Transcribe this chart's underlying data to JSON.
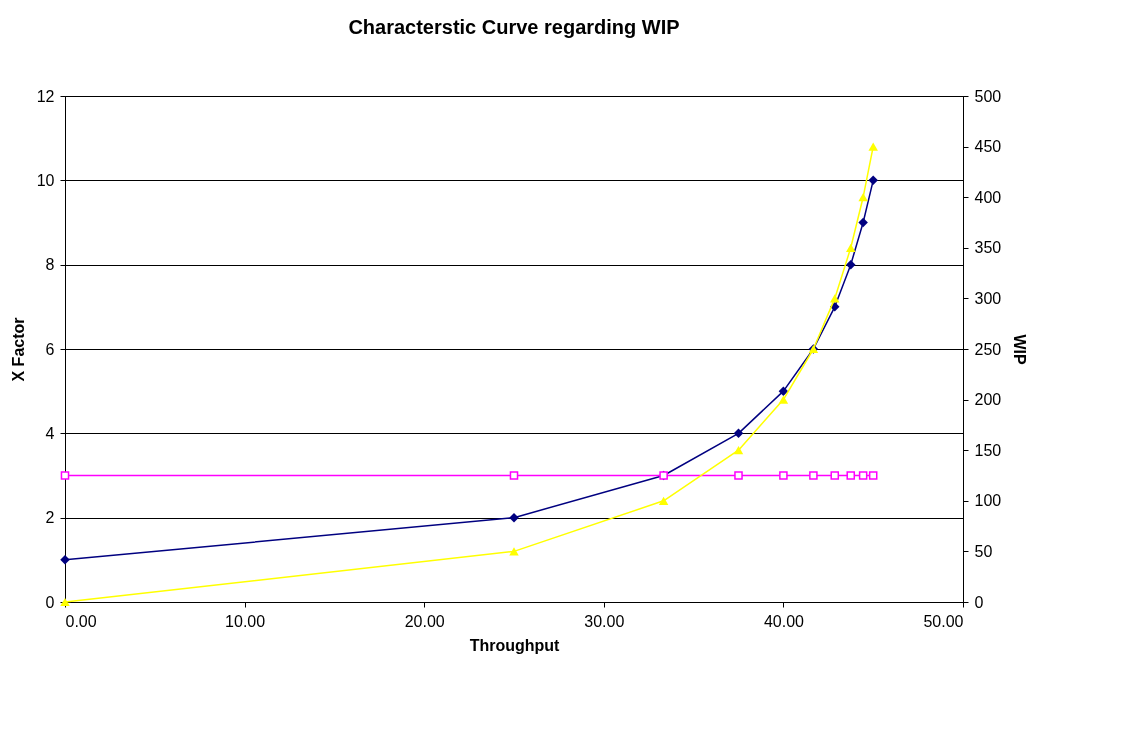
{
  "chart_data": {
    "type": "line",
    "title": "Characterstic Curve regarding WIP",
    "xlabel": "Throughput",
    "ylabel": "X Factor",
    "y2label": "WIP",
    "x": [
      0,
      25,
      33.33,
      37.5,
      40,
      41.67,
      42.86,
      43.75,
      44.44,
      45
    ],
    "series": [
      {
        "color": "#000080",
        "marker": "diamond",
        "values": [
          1,
          2,
          3,
          4,
          5,
          6,
          7,
          8,
          9,
          10
        ]
      },
      {
        "color": "#ff00ff",
        "marker": "square",
        "values": [
          3,
          3,
          3,
          3,
          3,
          3,
          3,
          3,
          3,
          3
        ]
      },
      {
        "color": "#ffff00",
        "marker": "triangle",
        "axis": "y2",
        "values": [
          0,
          50,
          100,
          150,
          200,
          250,
          300,
          350,
          400,
          450
        ]
      }
    ],
    "xlim": [
      0,
      50
    ],
    "xticks": [
      {
        "value": 0,
        "label": "0.00"
      },
      {
        "value": 10,
        "label": "10.00"
      },
      {
        "value": 20,
        "label": "20.00"
      },
      {
        "value": 30,
        "label": "30.00"
      },
      {
        "value": 40,
        "label": "40.00"
      },
      {
        "value": 50,
        "label": "50.00"
      }
    ],
    "ylim": [
      0,
      12
    ],
    "yticks": [
      0,
      2,
      4,
      6,
      8,
      10,
      12
    ],
    "y2lim": [
      0,
      500
    ],
    "y2ticks": [
      0,
      50,
      100,
      150,
      200,
      250,
      300,
      350,
      400,
      450,
      500
    ],
    "grid": "y",
    "line_style": "solid"
  }
}
